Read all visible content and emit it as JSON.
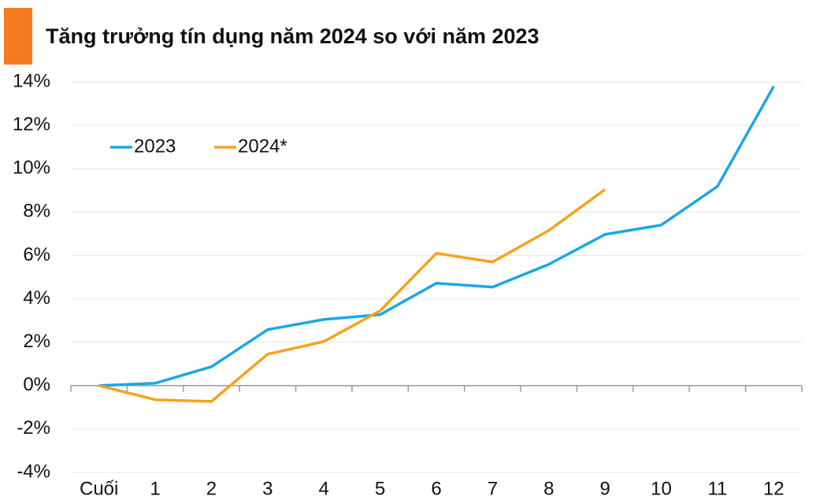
{
  "chart_data": {
    "type": "line",
    "title": "Tăng trưởng tín dụng năm 2024 so với năm 2023",
    "categories": [
      "Cuối",
      "1",
      "2",
      "3",
      "4",
      "5",
      "6",
      "7",
      "8",
      "9",
      "10",
      "11",
      "12"
    ],
    "series": [
      {
        "name": "2023",
        "color": "#1aa7e6",
        "values": [
          0,
          0.11,
          0.87,
          2.58,
          3.05,
          3.27,
          4.72,
          4.54,
          5.59,
          6.97,
          7.4,
          9.18,
          13.79
        ]
      },
      {
        "name": "2024*",
        "color": "#f7a21b",
        "values": [
          0,
          -0.65,
          -0.73,
          1.45,
          2.03,
          3.45,
          6.1,
          5.7,
          7.15,
          9.04,
          null,
          null,
          null
        ]
      }
    ],
    "ylim": [
      -4,
      14
    ],
    "yticks": [
      {
        "value": -4,
        "label": "-4%"
      },
      {
        "value": -2,
        "label": "-2%"
      },
      {
        "value": 0,
        "label": "0%"
      },
      {
        "value": 2,
        "label": "2%"
      },
      {
        "value": 4,
        "label": "4%"
      },
      {
        "value": 6,
        "label": "6%"
      },
      {
        "value": 8,
        "label": "8%"
      },
      {
        "value": 10,
        "label": "10%"
      },
      {
        "value": 12,
        "label": "12%"
      },
      {
        "value": 14,
        "label": "14%"
      }
    ],
    "grid": true,
    "legend": "top-left"
  }
}
